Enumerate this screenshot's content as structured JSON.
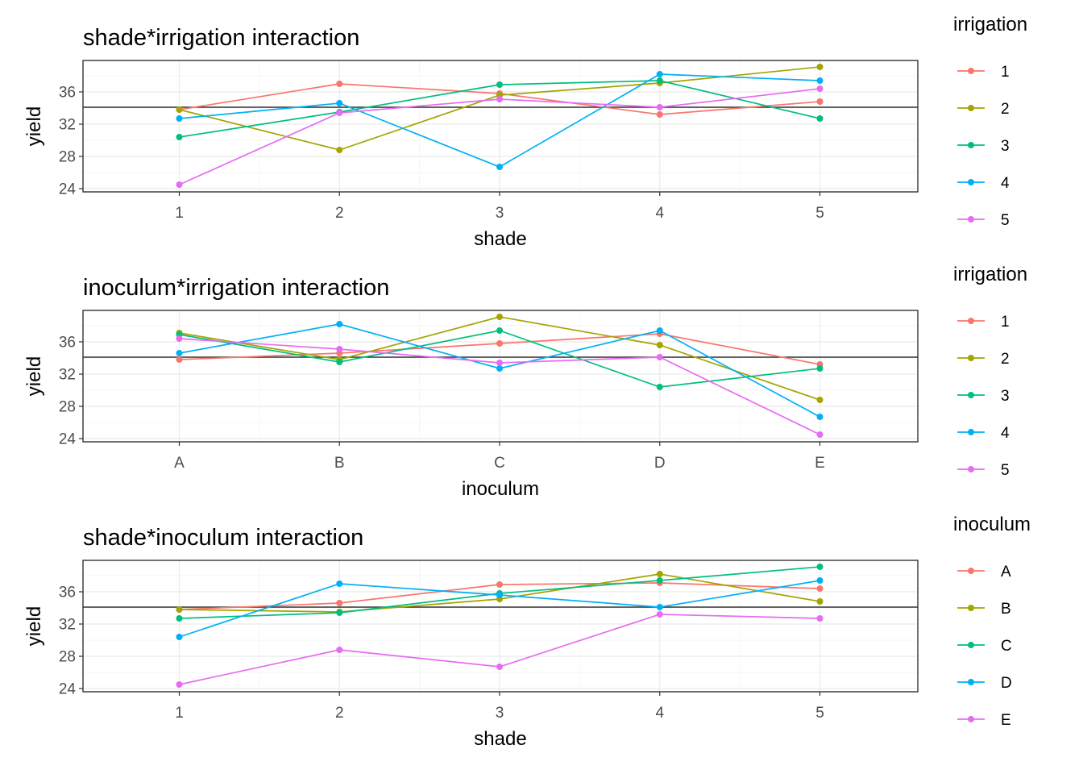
{
  "chart_data": [
    {
      "type": "line",
      "title": "shade*irrigation interaction",
      "xlabel": "shade",
      "ylabel": "yield",
      "categories": [
        "1",
        "2",
        "3",
        "4",
        "5"
      ],
      "ylim": [
        23.6,
        39.9
      ],
      "yticks": [
        24,
        28,
        32,
        36
      ],
      "reference_line": 34.1,
      "legend_title": "irrigation",
      "series": [
        {
          "name": "1",
          "values": [
            33.8,
            37.0,
            35.8,
            33.2,
            34.8
          ]
        },
        {
          "name": "2",
          "values": [
            33.8,
            28.8,
            35.6,
            37.1,
            39.1
          ]
        },
        {
          "name": "3",
          "values": [
            30.4,
            33.5,
            36.9,
            37.4,
            32.7
          ]
        },
        {
          "name": "4",
          "values": [
            32.7,
            34.6,
            26.7,
            38.2,
            37.4
          ]
        },
        {
          "name": "5",
          "values": [
            24.5,
            33.4,
            35.1,
            34.1,
            36.4
          ]
        }
      ]
    },
    {
      "type": "line",
      "title": "inoculum*irrigation interaction",
      "xlabel": "inoculum",
      "ylabel": "yield",
      "categories": [
        "A",
        "B",
        "C",
        "D",
        "E"
      ],
      "ylim": [
        23.6,
        39.9
      ],
      "yticks": [
        24,
        28,
        32,
        36
      ],
      "reference_line": 34.1,
      "legend_title": "irrigation",
      "series": [
        {
          "name": "1",
          "values": [
            33.8,
            34.6,
            35.8,
            37.0,
            33.2
          ]
        },
        {
          "name": "2",
          "values": [
            37.1,
            33.8,
            39.1,
            35.6,
            28.8
          ]
        },
        {
          "name": "3",
          "values": [
            36.9,
            33.5,
            37.4,
            30.4,
            32.7
          ]
        },
        {
          "name": "4",
          "values": [
            34.6,
            38.2,
            32.7,
            37.4,
            26.7
          ]
        },
        {
          "name": "5",
          "values": [
            36.4,
            35.1,
            33.4,
            34.1,
            24.5
          ]
        }
      ]
    },
    {
      "type": "line",
      "title": "shade*inoculum interaction",
      "xlabel": "shade",
      "ylabel": "yield",
      "categories": [
        "1",
        "2",
        "3",
        "4",
        "5"
      ],
      "ylim": [
        23.6,
        39.9
      ],
      "yticks": [
        24,
        28,
        32,
        36
      ],
      "reference_line": 34.1,
      "legend_title": "inoculum",
      "series": [
        {
          "name": "A",
          "values": [
            33.8,
            34.6,
            36.9,
            37.1,
            36.4
          ]
        },
        {
          "name": "B",
          "values": [
            33.8,
            33.5,
            35.1,
            38.2,
            34.8
          ]
        },
        {
          "name": "C",
          "values": [
            32.7,
            33.4,
            35.8,
            37.4,
            39.1
          ]
        },
        {
          "name": "D",
          "values": [
            30.4,
            37.0,
            35.6,
            34.1,
            37.4
          ]
        },
        {
          "name": "E",
          "values": [
            24.5,
            28.8,
            26.7,
            33.2,
            32.7
          ]
        }
      ]
    }
  ],
  "colors": {
    "series": [
      "#F8766D",
      "#A3A500",
      "#00BF7D",
      "#00B0F6",
      "#E76BF3"
    ],
    "reference_line": "#333333",
    "panel_border": "#333333",
    "grid_major": "#EBEBEB",
    "grid_minor": "#F5F5F5",
    "tick_text": "#4D4D4D"
  }
}
